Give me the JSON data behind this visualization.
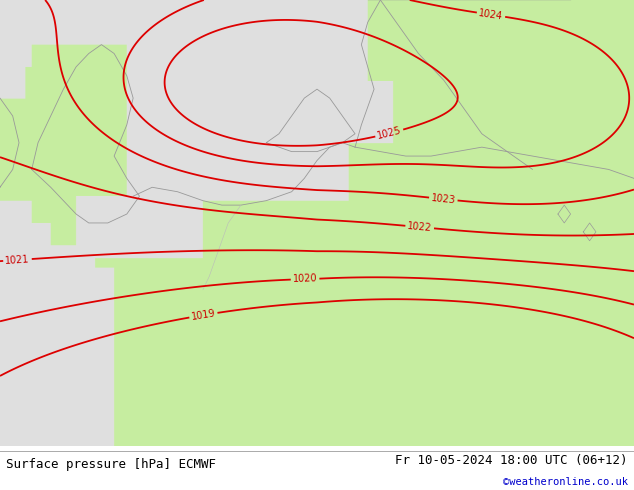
{
  "title_left": "Surface pressure [hPa] ECMWF",
  "title_right": "Fr 10-05-2024 18:00 UTC (06+12)",
  "credit": "©weatheronline.co.uk",
  "sea_color": "#e0e0e0",
  "land_color_r": 0.78,
  "land_color_g": 0.93,
  "land_color_b": 0.63,
  "contour_color": "#dd0000",
  "coast_color": "#999999",
  "label_color": "#cc0000",
  "contour_levels": [
    1019,
    1020,
    1021,
    1022,
    1023,
    1024,
    1025
  ],
  "figsize": [
    6.34,
    4.9
  ],
  "dpi": 100,
  "bottom_bar_color": "#f0f0f0",
  "title_fontsize": 9,
  "credit_color": "#0000cc",
  "label_fontsize": 7
}
